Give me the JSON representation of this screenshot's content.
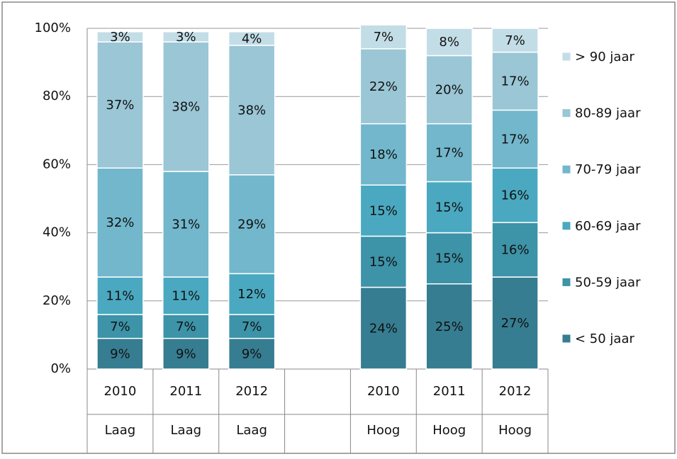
{
  "chart_data": {
    "type": "stacked_bar",
    "categories": [
      "2010",
      "2011",
      "2012",
      null,
      "2010",
      "2011",
      "2012"
    ],
    "groups": [
      "Laag",
      "Laag",
      "Laag",
      null,
      "Hoog",
      "Hoog",
      "Hoog"
    ],
    "series": [
      {
        "name": "< 50 jaar",
        "color": "#367d91",
        "values": [
          9,
          9,
          9,
          null,
          24,
          25,
          27
        ],
        "value_labels": [
          "9%",
          "9%",
          "9%",
          null,
          "24%",
          "25%",
          "27%"
        ]
      },
      {
        "name": "50-59 jaar",
        "color": "#3d93a8",
        "values": [
          7,
          7,
          7,
          null,
          15,
          15,
          16
        ],
        "value_labels": [
          "7%",
          "7%",
          "7%",
          null,
          "15%",
          "15%",
          "16%"
        ]
      },
      {
        "name": "60-69 jaar",
        "color": "#4aa9c0",
        "values": [
          11,
          11,
          12,
          null,
          15,
          15,
          16
        ],
        "value_labels": [
          "11%",
          "11%",
          "12%",
          null,
          "15%",
          "15%",
          "16%"
        ]
      },
      {
        "name": "70-79 jaar",
        "color": "#72b7cc",
        "values": [
          32,
          31,
          29,
          null,
          18,
          17,
          17
        ],
        "value_labels": [
          "32%",
          "31%",
          "29%",
          null,
          "18%",
          "17%",
          "17%"
        ]
      },
      {
        "name": "80-89 jaar",
        "color": "#9ac6d6",
        "values": [
          37,
          38,
          38,
          null,
          22,
          20,
          17
        ],
        "value_labels": [
          "37%",
          "38%",
          "38%",
          null,
          "22%",
          "20%",
          "17%"
        ]
      },
      {
        "name": "> 90 jaar",
        "color": "#c3dde7",
        "values": [
          3,
          3,
          4,
          null,
          7,
          8,
          7
        ],
        "value_labels": [
          "3%",
          "3%",
          "4%",
          null,
          "7%",
          "8%",
          "7%"
        ]
      }
    ],
    "ylim": [
      0,
      100
    ],
    "yticks": [
      {
        "value": 0,
        "label": "0%"
      },
      {
        "value": 20,
        "label": "20%"
      },
      {
        "value": 40,
        "label": "40%"
      },
      {
        "value": 60,
        "label": "60%"
      },
      {
        "value": 80,
        "label": "80%"
      },
      {
        "value": 100,
        "label": "100%"
      }
    ],
    "grid": true,
    "legend": "right"
  }
}
